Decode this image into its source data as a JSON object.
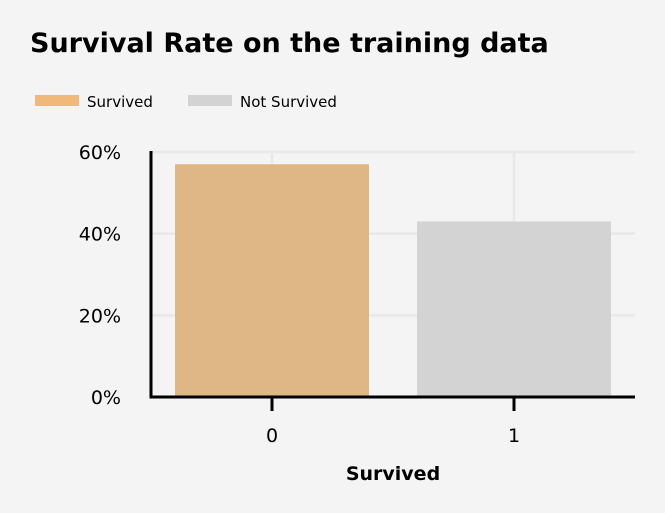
{
  "chart_data": {
    "type": "bar",
    "title": "Survival Rate on the training data",
    "xlabel": "Survived",
    "ylabel": "",
    "categories": [
      "0",
      "1"
    ],
    "values": [
      57.0,
      43.0
    ],
    "bar_colors": [
      "#dfb686",
      "#d3d3d3"
    ],
    "ylim": [
      0,
      60
    ],
    "yticks": [
      0,
      20,
      40,
      60
    ],
    "ytick_labels": [
      "0%",
      "20%",
      "40%",
      "60%"
    ],
    "grid": true,
    "legend_position": "top-left",
    "legend": [
      {
        "label": "Survived",
        "color": "#f0b97a"
      },
      {
        "label": "Not Survived",
        "color": "#d3d3d3"
      }
    ]
  }
}
